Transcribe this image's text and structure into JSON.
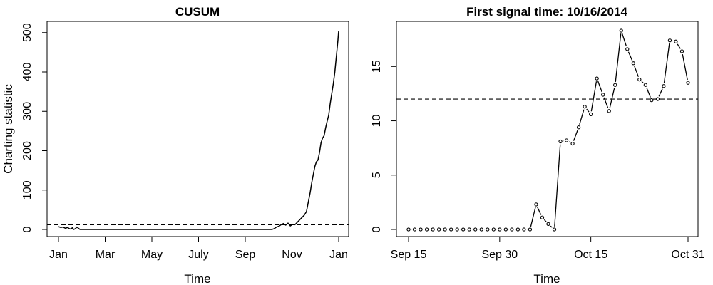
{
  "chart_data": [
    {
      "type": "line",
      "title": "CUSUM",
      "xlabel": "Time",
      "ylabel": "Charting statistic",
      "x_tick_labels": [
        "Jan",
        "Mar",
        "May",
        "July",
        "Sep",
        "Nov",
        "Jan"
      ],
      "y_ticks": [
        0,
        100,
        200,
        300,
        400,
        500
      ],
      "xlim": [
        0,
        365
      ],
      "ylim": [
        0,
        505
      ],
      "threshold": 12,
      "threshold_style": "dashed",
      "series": [
        {
          "x": [
            0,
            3,
            6,
            9,
            12,
            14,
            16,
            18,
            20,
            22,
            24,
            26,
            28,
            30,
            32,
            40,
            80,
            120,
            160,
            200,
            240,
            270,
            278,
            281,
            284,
            287,
            290,
            293,
            296,
            299,
            302,
            305,
            308,
            311,
            314,
            317,
            320,
            323,
            326,
            328,
            330,
            332,
            334,
            336,
            338,
            340,
            342,
            344,
            346,
            348,
            350,
            352,
            354,
            356,
            358,
            360,
            362,
            364,
            365
          ],
          "y": [
            7,
            5,
            6,
            3,
            5,
            2,
            1,
            4,
            0,
            2,
            6,
            3,
            0,
            0,
            0,
            0,
            0,
            0,
            0,
            0,
            0,
            0,
            0,
            2,
            6,
            8,
            12,
            15,
            11,
            16,
            9,
            13,
            12,
            18,
            24,
            30,
            36,
            45,
            75,
            95,
            120,
            140,
            160,
            172,
            176,
            195,
            220,
            232,
            238,
            258,
            275,
            290,
            320,
            345,
            370,
            400,
            440,
            480,
            505
          ]
        }
      ]
    },
    {
      "type": "line",
      "title": "First signal time: 10/16/2014",
      "xlabel": "Time",
      "ylabel": "",
      "x_tick_labels": [
        "Sep 15",
        "Sep 30",
        "Oct 15",
        "Oct 31"
      ],
      "y_ticks": [
        0,
        5,
        10,
        15
      ],
      "xlim": [
        0,
        46
      ],
      "ylim": [
        0,
        18.3
      ],
      "threshold": 12,
      "threshold_style": "dashed",
      "series": [
        {
          "x": [
            0,
            1,
            2,
            3,
            4,
            5,
            6,
            7,
            8,
            9,
            10,
            11,
            12,
            13,
            14,
            15,
            16,
            17,
            18,
            19,
            20,
            21,
            22,
            23,
            24,
            25,
            26,
            27,
            28,
            29,
            30,
            31,
            32,
            33,
            34,
            35,
            36,
            37,
            38,
            39,
            40,
            41,
            42,
            43,
            44,
            45,
            46
          ],
          "y": [
            0,
            0,
            0,
            0,
            0,
            0,
            0,
            0,
            0,
            0,
            0,
            0,
            0,
            0,
            0,
            0,
            0,
            0,
            0,
            0,
            0,
            2.3,
            1.1,
            0.5,
            0,
            8.1,
            8.2,
            7.9,
            9.4,
            11.3,
            10.6,
            13.9,
            12.4,
            10.9,
            13.3,
            18.3,
            16.6,
            15.3,
            13.8,
            13.3,
            11.9,
            12.0,
            13.2,
            17.4,
            17.3,
            16.4,
            13.5
          ],
          "marker": "circle"
        }
      ]
    }
  ]
}
